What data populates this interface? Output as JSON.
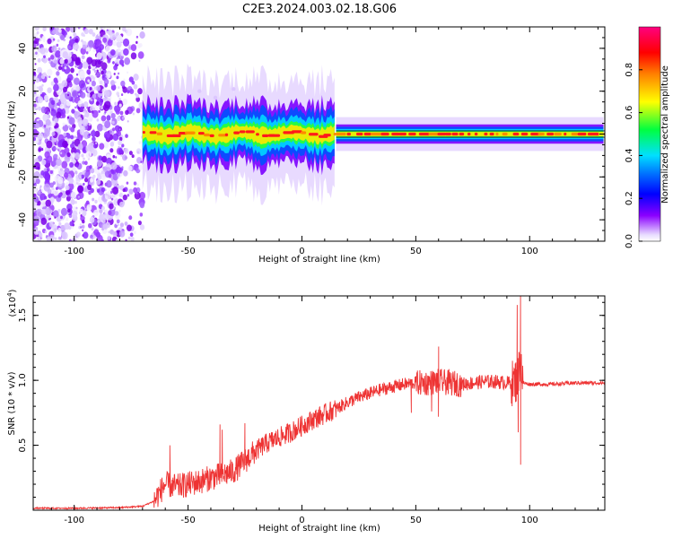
{
  "page_title": "C2E3.2024.003.02.18.G06",
  "colors": {
    "snr_line": "#ee3333",
    "colormap": [
      "#ffffff",
      "#d9c2ff",
      "#8000ff",
      "#0000ff",
      "#00c8ff",
      "#00ff40",
      "#ffff00",
      "#ff8000",
      "#ff0000",
      "#ff0080"
    ]
  },
  "chart_data": [
    {
      "type": "heatmap",
      "title": "",
      "xlabel": "Height of straight line (km)",
      "ylabel": "Frequency (Hz)",
      "xlim": [
        -118,
        133
      ],
      "ylim": [
        -50,
        50
      ],
      "x_ticks": [
        -100,
        -50,
        0,
        50,
        100
      ],
      "x_tick_labels": [
        "-100",
        "-50",
        "0",
        "50",
        "100"
      ],
      "y_ticks": [
        40,
        20,
        0,
        -20,
        -40
      ],
      "y_tick_labels": [
        "40",
        "20",
        "0",
        "-20",
        "-40"
      ],
      "colorbar": {
        "label": "Normalized spectral amplitude",
        "range": [
          0,
          1
        ],
        "ticks": [
          0.0,
          0.2,
          0.4,
          0.6,
          0.8
        ],
        "tick_labels": [
          "0.0",
          "0.2",
          "0.4",
          "0.6",
          "0.8"
        ]
      },
      "regions": [
        {
          "x_range": [
            -118,
            -70
          ],
          "freq_range": [
            -50,
            50
          ],
          "pattern": "scattered noise",
          "amplitude": 0.1
        },
        {
          "x_range": [
            -70,
            15
          ],
          "center_freq": 0,
          "bandwidth_hz": 5,
          "pattern": "wavering carrier",
          "amplitude": 0.8
        },
        {
          "x_range": [
            15,
            133
          ],
          "center_freq": 0,
          "bandwidth_hz": 3,
          "pattern": "stable carrier",
          "amplitude": 0.9
        }
      ]
    },
    {
      "type": "line",
      "title": "",
      "xlabel": "Height of straight line (km)",
      "ylabel": "SNR (10 * v/v)",
      "y_multiplier_label": "(x10",
      "y_multiplier_exp": "4",
      "y_multiplier_close": ")",
      "xlim": [
        -118,
        133
      ],
      "ylim": [
        0,
        16500
      ],
      "x_ticks": [
        -100,
        -50,
        0,
        50,
        100
      ],
      "x_tick_labels": [
        "-100",
        "-50",
        "0",
        "50",
        "100"
      ],
      "y_ticks": [
        5000,
        10000,
        15000
      ],
      "y_tick_labels": [
        "0.5",
        "1.0",
        "1.5"
      ],
      "series": [
        {
          "x": [
            -118,
            -100,
            -80,
            -70,
            -65,
            -62,
            -60,
            -55,
            -50,
            -45,
            -40,
            -35,
            -30,
            -25,
            -20,
            -15,
            -10,
            -5,
            0,
            5,
            10,
            15,
            20,
            25,
            30,
            35,
            40,
            45,
            50,
            55,
            60,
            65,
            70,
            75,
            80,
            85,
            90,
            93,
            95,
            96,
            97,
            100,
            110,
            120,
            133
          ],
          "y": [
            150,
            150,
            200,
            300,
            700,
            1500,
            2000,
            1800,
            2000,
            2200,
            2500,
            2700,
            3000,
            3800,
            4600,
            5200,
            5600,
            6000,
            6500,
            7000,
            7400,
            7800,
            8300,
            8700,
            9000,
            9300,
            9500,
            9700,
            9800,
            9800,
            9900,
            9800,
            9700,
            9800,
            9900,
            9900,
            9800,
            9800,
            10200,
            12000,
            9800,
            9700,
            9700,
            9800,
            9800
          ],
          "noise_envelope": [
            {
              "x": [
                -65,
                -20
              ],
              "amplitude": 1000
            },
            {
              "x": [
                -20,
                15
              ],
              "amplitude": 800
            },
            {
              "x": [
                15,
                50
              ],
              "amplitude": 500
            },
            {
              "x": [
                50,
                70
              ],
              "amplitude": 1000
            },
            {
              "x": [
                70,
                92
              ],
              "amplitude": 550
            },
            {
              "x": [
                92,
                97
              ],
              "amplitude": 1800
            },
            {
              "x": [
                97,
                133
              ],
              "amplitude": 150
            }
          ],
          "peaks": [
            {
              "x": -58,
              "y": 5000
            },
            {
              "x": -36,
              "y": 6600
            },
            {
              "x": -35,
              "y": 6200
            },
            {
              "x": -25,
              "y": 6700
            },
            {
              "x": 0,
              "y": 7100
            },
            {
              "x": 60,
              "y": 12600
            },
            {
              "x": 94.5,
              "y": 15800
            },
            {
              "x": 96,
              "y": 16500
            }
          ],
          "dips": [
            {
              "x": 96,
              "y": 3500
            },
            {
              "x": 95,
              "y": 6000
            },
            {
              "x": 60,
              "y": 7200
            },
            {
              "x": 48,
              "y": 7500
            },
            {
              "x": 57,
              "y": 7600
            }
          ]
        }
      ]
    }
  ]
}
